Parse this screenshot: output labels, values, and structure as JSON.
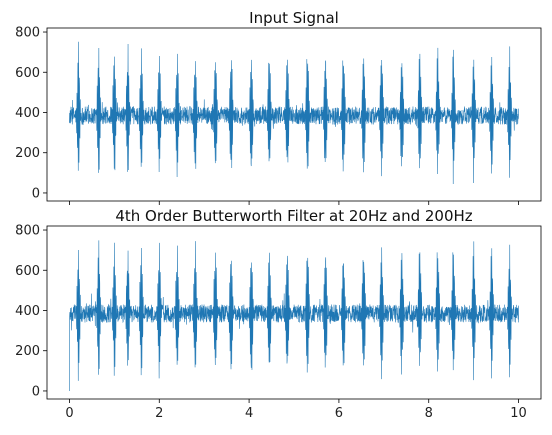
{
  "chart_data": [
    {
      "type": "line",
      "title": "Input Signal",
      "xlabel": "",
      "ylabel": "",
      "xlim": [
        -0.5,
        10.5
      ],
      "ylim": [
        -40,
        820
      ],
      "yticks": [
        0,
        200,
        400,
        600,
        800
      ],
      "xticks": [
        0,
        2,
        4,
        6,
        8,
        10
      ],
      "show_x_ticklabels": false,
      "grid": false,
      "line_color": "#1f77b4",
      "signal": {
        "t_start": 0,
        "t_end": 10,
        "baseline": 385,
        "noise_amplitude": 45,
        "spike_times": [
          0.2,
          0.65,
          1.0,
          1.3,
          1.6,
          2.0,
          2.4,
          2.8,
          3.25,
          3.6,
          4.05,
          4.45,
          4.85,
          5.3,
          5.7,
          6.1,
          6.55,
          6.95,
          7.4,
          7.8,
          8.2,
          8.55,
          9.0,
          9.4,
          9.8
        ],
        "spike_max": 785,
        "spike_min": 10
      }
    },
    {
      "type": "line",
      "title": "4th Order Butterworth Filter at 20Hz and 200Hz",
      "xlabel": "",
      "ylabel": "",
      "xlim": [
        -0.5,
        10.5
      ],
      "ylim": [
        -40,
        820
      ],
      "yticks": [
        0,
        200,
        400,
        600,
        800
      ],
      "xticks": [
        0,
        2,
        4,
        6,
        8,
        10
      ],
      "show_x_ticklabels": true,
      "grid": false,
      "line_color": "#1f77b4",
      "signal": {
        "t_start": 0,
        "t_end": 10,
        "baseline": 385,
        "noise_amplitude": 45,
        "spike_times": [
          0.2,
          0.65,
          1.0,
          1.3,
          1.6,
          2.0,
          2.4,
          2.8,
          3.25,
          3.6,
          4.05,
          4.45,
          4.85,
          5.3,
          5.7,
          6.1,
          6.55,
          6.95,
          7.4,
          7.8,
          8.2,
          8.55,
          9.0,
          9.4,
          9.8
        ],
        "spike_max": 800,
        "spike_min": 0,
        "start_value": 0
      }
    }
  ]
}
